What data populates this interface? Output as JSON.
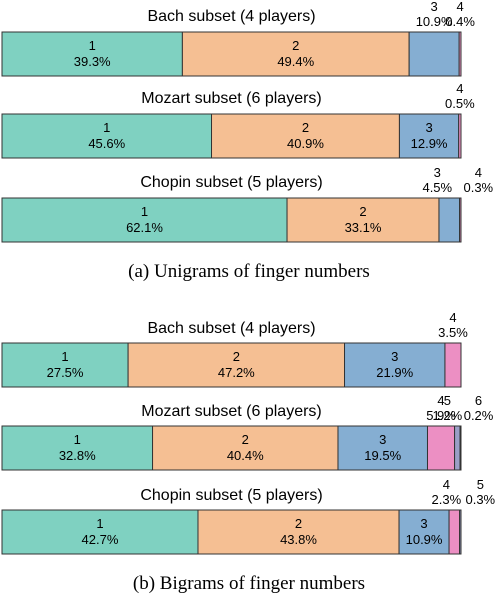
{
  "chart_data": [
    {
      "type": "bar",
      "orientation": "horizontal-stacked-100",
      "caption": "(a) Unigrams of finger numbers",
      "bars": [
        {
          "title": "Bach subset (4 players)",
          "segments": [
            {
              "label": "1",
              "value": 39.3,
              "text": "39.3%"
            },
            {
              "label": "2",
              "value": 49.4,
              "text": "49.4%"
            },
            {
              "label": "3",
              "value": 10.9,
              "text": "10.9%"
            },
            {
              "label": "4",
              "value": 0.4,
              "text": "0.4%"
            }
          ]
        },
        {
          "title": "Mozart subset (6 players)",
          "segments": [
            {
              "label": "1",
              "value": 45.6,
              "text": "45.6%"
            },
            {
              "label": "2",
              "value": 40.9,
              "text": "40.9%"
            },
            {
              "label": "3",
              "value": 12.9,
              "text": "12.9%"
            },
            {
              "label": "4",
              "value": 0.5,
              "text": "0.5%"
            }
          ]
        },
        {
          "title": "Chopin subset (5 players)",
          "segments": [
            {
              "label": "1",
              "value": 62.1,
              "text": "62.1%"
            },
            {
              "label": "2",
              "value": 33.1,
              "text": "33.1%"
            },
            {
              "label": "3",
              "value": 4.5,
              "text": "4.5%"
            },
            {
              "label": "4",
              "value": 0.3,
              "text": "0.3%"
            }
          ]
        }
      ]
    },
    {
      "type": "bar",
      "orientation": "horizontal-stacked-100",
      "caption": "(b) Bigrams of finger numbers",
      "bars": [
        {
          "title": "Bach subset (4 players)",
          "segments": [
            {
              "label": "1",
              "value": 27.5,
              "text": "27.5%"
            },
            {
              "label": "2",
              "value": 47.2,
              "text": "47.2%"
            },
            {
              "label": "3",
              "value": 21.9,
              "text": "21.9%"
            },
            {
              "label": "4",
              "value": 3.5,
              "text": "3.5%"
            }
          ]
        },
        {
          "title": "Mozart subset (6 players)",
          "segments": [
            {
              "label": "1",
              "value": 32.8,
              "text": "32.8%"
            },
            {
              "label": "2",
              "value": 40.4,
              "text": "40.4%"
            },
            {
              "label": "3",
              "value": 19.5,
              "text": "19.5%"
            },
            {
              "label": "4",
              "value": 5.9,
              "text": "5.9%"
            },
            {
              "label": "5",
              "value": 1.2,
              "text": "1.2%"
            },
            {
              "label": "6",
              "value": 0.2,
              "text": "0.2%"
            }
          ]
        },
        {
          "title": "Chopin subset (5 players)",
          "segments": [
            {
              "label": "1",
              "value": 42.7,
              "text": "42.7%"
            },
            {
              "label": "2",
              "value": 43.8,
              "text": "43.8%"
            },
            {
              "label": "3",
              "value": 10.9,
              "text": "10.9%"
            },
            {
              "label": "4",
              "value": 2.3,
              "text": "2.3%"
            },
            {
              "label": "5",
              "value": 0.3,
              "text": "0.3%"
            }
          ]
        }
      ]
    }
  ],
  "colors": {
    "1": "#7fd1c1",
    "2": "#f5bf93",
    "3": "#85aed2",
    "4": "#ec8fc3",
    "5": "#9b9fc6",
    "6": "#f3d66d",
    "outline": "#333333"
  }
}
